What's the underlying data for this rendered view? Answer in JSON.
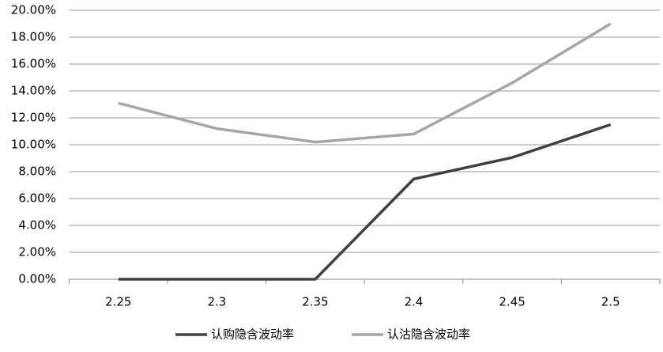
{
  "chart_data": {
    "type": "line",
    "categories": [
      "2.25",
      "2.3",
      "2.35",
      "2.4",
      "2.45",
      "2.5"
    ],
    "series": [
      {
        "name": "认购隐含波动率",
        "color": "#404040",
        "values": [
          0,
          0,
          0,
          7.45,
          9.05,
          11.5
        ]
      },
      {
        "name": "认沽隐含波动率",
        "color": "#a6a6a6",
        "values": [
          13.1,
          11.2,
          10.2,
          10.8,
          14.6,
          19.0
        ]
      }
    ],
    "ylim": [
      0,
      20
    ],
    "yticks": [
      {
        "value": 0,
        "label": "0.00%"
      },
      {
        "value": 2,
        "label": "2.00%"
      },
      {
        "value": 4,
        "label": "4.00%"
      },
      {
        "value": 6,
        "label": "6.00%"
      },
      {
        "value": 8,
        "label": "8.00%"
      },
      {
        "value": 10,
        "label": "10.00%"
      },
      {
        "value": 12,
        "label": "12.00%"
      },
      {
        "value": 14,
        "label": "14.00%"
      },
      {
        "value": 16,
        "label": "16.00%"
      },
      {
        "value": 18,
        "label": "18.00%"
      },
      {
        "value": 20,
        "label": "20.00%"
      }
    ],
    "grid": true,
    "legend": "bottom"
  }
}
